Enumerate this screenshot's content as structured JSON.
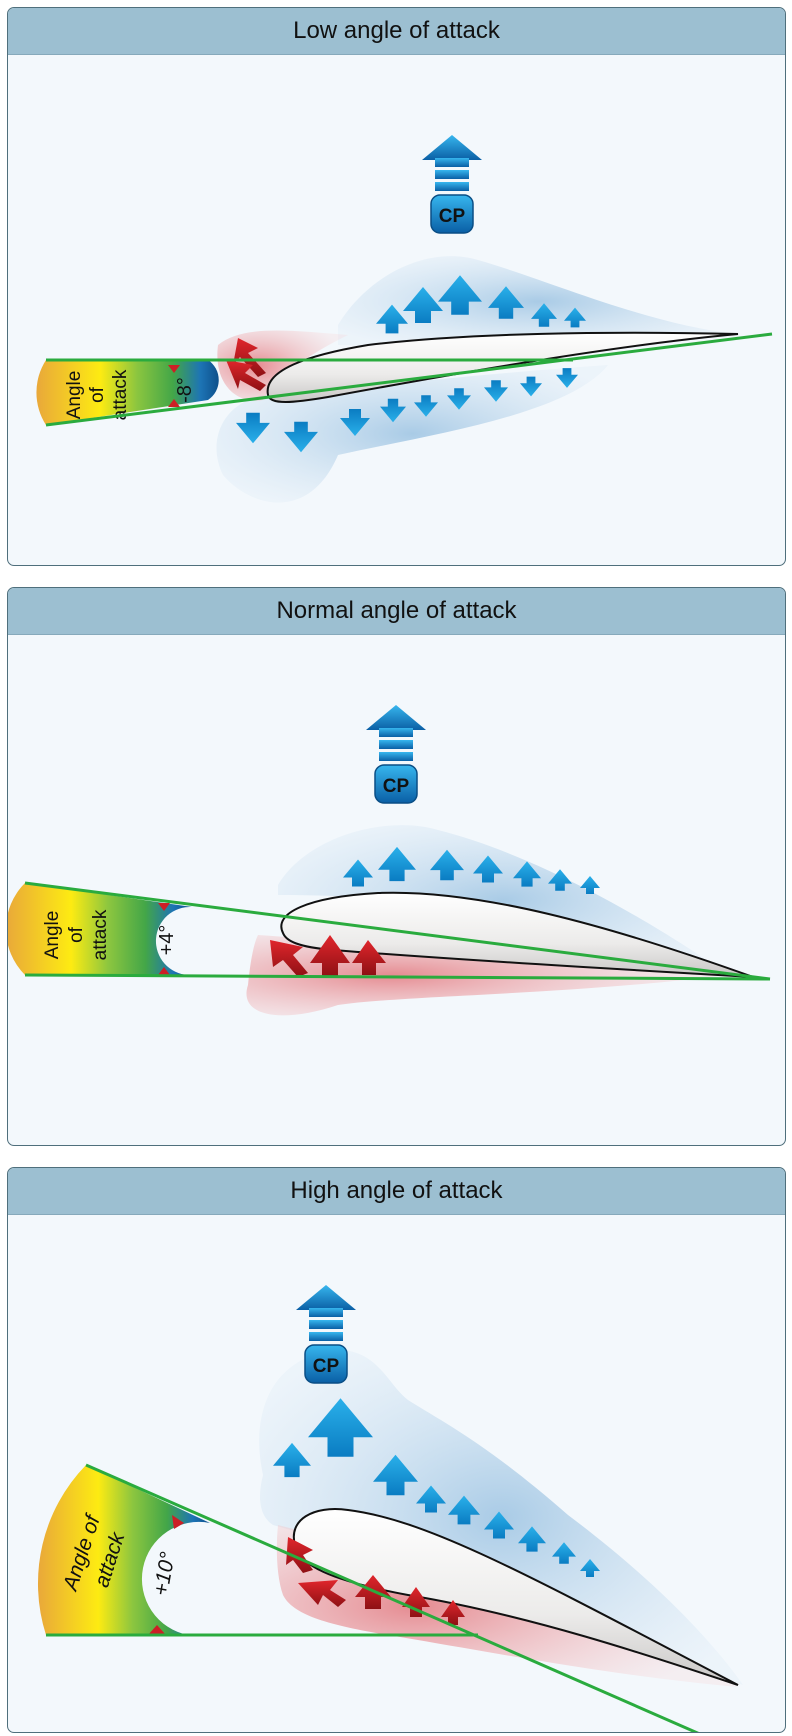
{
  "panels": [
    {
      "title": "Low angle of attack",
      "angle_label": "-8°",
      "aoa_label": [
        "Angle",
        "of",
        "attack"
      ],
      "cp_label": "CP",
      "angle_degrees": -8
    },
    {
      "title": "Normal angle of attack",
      "angle_label": "+4°",
      "aoa_label": [
        "Angle",
        "of",
        "attack"
      ],
      "cp_label": "CP",
      "angle_degrees": 4
    },
    {
      "title": "High angle of attack",
      "angle_label": "+10°",
      "aoa_label": [
        "Angle of",
        "attack"
      ],
      "cp_label": "CP",
      "angle_degrees": 10
    }
  ],
  "colors": {
    "panel_bg": "#f3f8fc",
    "header_bg": "#9cbfd1",
    "low_pressure": "#1fa3e0",
    "high_pressure": "#cc1f26",
    "chord_line": "#2aab3e"
  }
}
